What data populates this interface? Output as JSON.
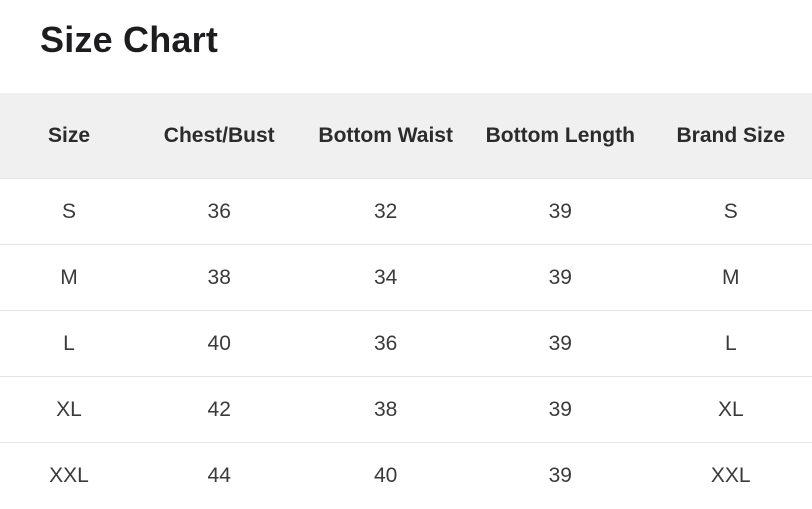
{
  "page": {
    "title": "Size Chart"
  },
  "colors": {
    "background": "#ffffff",
    "header_bg": "#f0f0f0",
    "separator": "#e6e6e6",
    "title_text": "#1d1d1f",
    "header_text": "#2b2b2b",
    "body_text": "#3a3a3a"
  },
  "chart_data": {
    "type": "table",
    "title": "Size Chart",
    "columns": [
      "Size",
      "Chest/Bust",
      "Bottom Waist",
      "Bottom Length",
      "Brand Size"
    ],
    "rows": [
      [
        "S",
        "36",
        "32",
        "39",
        "S"
      ],
      [
        "M",
        "38",
        "34",
        "39",
        "M"
      ],
      [
        "L",
        "40",
        "36",
        "39",
        "L"
      ],
      [
        "XL",
        "42",
        "38",
        "39",
        "XL"
      ],
      [
        "XXL",
        "44",
        "40",
        "39",
        "XXL"
      ]
    ]
  }
}
